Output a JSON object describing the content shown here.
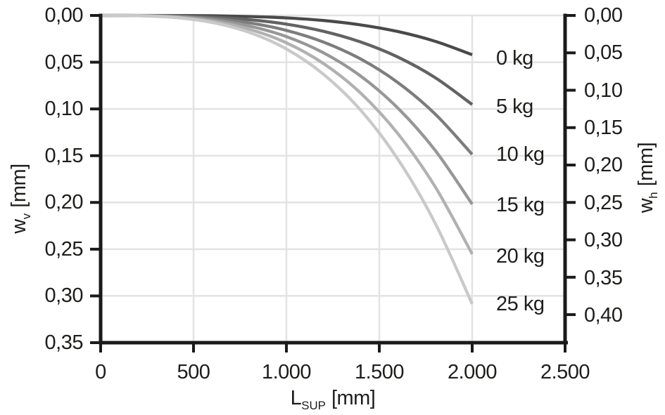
{
  "chart_data": {
    "type": "line",
    "title": "",
    "x_values": [
      0,
      200,
      400,
      600,
      800,
      1000,
      1200,
      1400,
      1600,
      1800,
      2000
    ],
    "series": [
      {
        "name": "0 kg",
        "mass_kg": 0,
        "color": "#4a4a4a",
        "values": [
          0,
          0.0,
          0.0001,
          0.0003,
          0.0011,
          0.0026,
          0.0054,
          0.0101,
          0.0172,
          0.0276,
          0.042
        ]
      },
      {
        "name": "5 kg",
        "mass_kg": 5,
        "color": "#636363",
        "values": [
          0,
          0.0001,
          0.0005,
          0.0018,
          0.0045,
          0.0093,
          0.017,
          0.0284,
          0.0445,
          0.0664,
          0.0953
        ]
      },
      {
        "name": "10 kg",
        "mass_kg": 10,
        "color": "#7d7d7d",
        "values": [
          0,
          0.0001,
          0.0009,
          0.0032,
          0.0079,
          0.016,
          0.0285,
          0.0466,
          0.0718,
          0.1053,
          0.1486
        ]
      },
      {
        "name": "15 kg",
        "mass_kg": 15,
        "color": "#979797",
        "values": [
          0,
          0.0002,
          0.0013,
          0.0047,
          0.0113,
          0.0226,
          0.04,
          0.0649,
          0.0991,
          0.1441,
          0.2019
        ]
      },
      {
        "name": "20 kg",
        "mass_kg": 20,
        "color": "#b1b1b1",
        "values": [
          0,
          0.0002,
          0.0018,
          0.0061,
          0.0147,
          0.0293,
          0.0515,
          0.0831,
          0.1264,
          0.183,
          0.2552
        ]
      },
      {
        "name": "25 kg",
        "mass_kg": 25,
        "color": "#c9c9c9",
        "values": [
          0,
          0.0003,
          0.0022,
          0.0075,
          0.0181,
          0.0359,
          0.063,
          0.1014,
          0.1537,
          0.2219,
          0.3085
        ]
      }
    ],
    "axes": {
      "x": {
        "label": "L_SUP [mm]",
        "label_base": "L",
        "label_sub": "SUP",
        "label_unit": "[mm]",
        "range": [
          0,
          2500
        ],
        "tick_values": [
          0,
          500,
          1000,
          1500,
          2000,
          2500
        ],
        "ticks": [
          "0",
          "500",
          "1.000",
          "1.500",
          "2.000",
          "2.500"
        ]
      },
      "y_left": {
        "label": "w_v [mm]",
        "label_base": "w",
        "label_sub": "v",
        "label_unit": "[mm]",
        "range": [
          0,
          0.35
        ],
        "direction": "inverted",
        "tick_values": [
          0,
          0.05,
          0.1,
          0.15,
          0.2,
          0.25,
          0.3,
          0.35
        ],
        "ticks": [
          "0,00",
          "0,05",
          "0,10",
          "0,15",
          "0,20",
          "0,25",
          "0,30",
          "0,35"
        ]
      },
      "y_right": {
        "label": "w_h [mm]",
        "label_base": "w",
        "label_sub": "h",
        "label_unit": "[mm]",
        "range": [
          0,
          0.4375
        ],
        "direction": "inverted",
        "tick_values": [
          0,
          0.05,
          0.1,
          0.15,
          0.2,
          0.25,
          0.3,
          0.35,
          0.4
        ],
        "ticks": [
          "0,00",
          "0,05",
          "0,10",
          "0,15",
          "0,20",
          "0,25",
          "0,30",
          "0,35",
          "0,40"
        ]
      }
    },
    "grid": true,
    "legend_position": "inline-right-of-curves",
    "style": {
      "grid_color": "#e3e3e3",
      "axis_color": "#1a1a1a",
      "text_color": "#1d1d1b",
      "background": "#ffffff"
    }
  }
}
